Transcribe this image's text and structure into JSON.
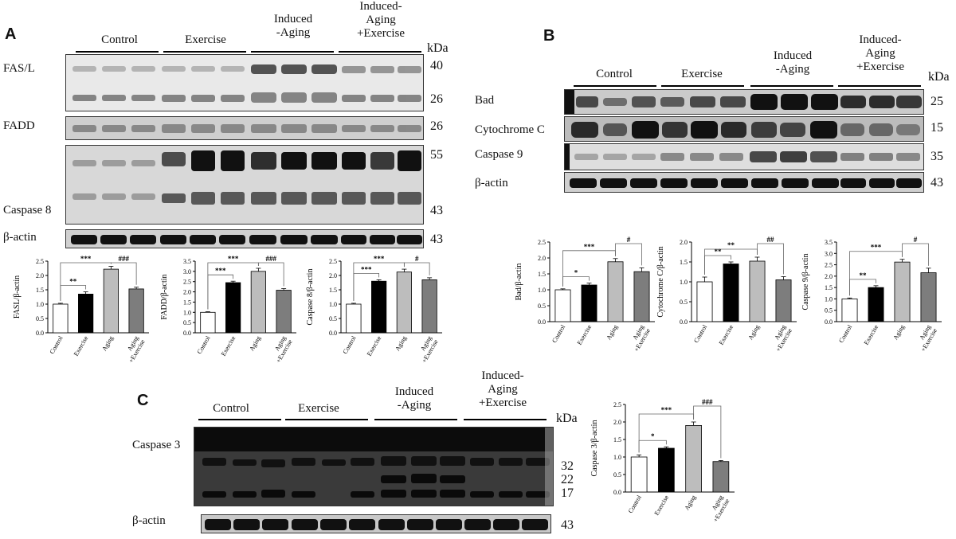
{
  "group_labels": [
    "Control",
    "Exercise",
    "Induced\n-Aging",
    "Induced-\nAging\n+Exercise"
  ],
  "kda_label": "kDa",
  "panel_a": {
    "letter": "A",
    "blots": [
      {
        "label": "FAS/L",
        "markers": [
          "40",
          "26"
        ]
      },
      {
        "label": "FADD",
        "markers": [
          "26"
        ]
      },
      {
        "label": "Caspase 8",
        "markers": [
          "55",
          "43"
        ]
      },
      {
        "label": "β-actin",
        "markers": [
          "43"
        ]
      }
    ]
  },
  "panel_b": {
    "letter": "B",
    "blots": [
      {
        "label": "Bad",
        "markers": [
          "25"
        ]
      },
      {
        "label": "Cytochrome C",
        "markers": [
          "15"
        ]
      },
      {
        "label": "Caspase 9",
        "markers": [
          "35"
        ]
      },
      {
        "label": "β-actin",
        "markers": [
          "43"
        ]
      }
    ]
  },
  "panel_c": {
    "letter": "C",
    "blots": [
      {
        "label": "Caspase 3",
        "markers": [
          "32",
          "22",
          "17"
        ]
      },
      {
        "label": "β-actin",
        "markers": [
          "43"
        ]
      }
    ]
  },
  "chart_data": [
    {
      "type": "bar",
      "panel": "A",
      "ylabel": "FASL/β-actin",
      "ylim": [
        0,
        2.5
      ],
      "yticks": [
        "0.0",
        "0.5",
        "1.0",
        "1.5",
        "2.0",
        "2.5"
      ],
      "categories": [
        "Control",
        "Exercise",
        "Aging",
        "Aging\n+Exercise"
      ],
      "values": [
        1.0,
        1.35,
        2.22,
        1.53
      ],
      "errors": [
        0.03,
        0.08,
        0.1,
        0.06
      ],
      "colors": [
        "#ffffff",
        "#000000",
        "#bdbdbd",
        "#7d7d7d"
      ],
      "significance": [
        {
          "from": 0,
          "to": 1,
          "label": "**"
        },
        {
          "from": 0,
          "to": 2,
          "label": "***"
        },
        {
          "from": 2,
          "to": 3,
          "label": "###"
        }
      ]
    },
    {
      "type": "bar",
      "panel": "A",
      "ylabel": "FADD/β-actin",
      "ylim": [
        0,
        3.5
      ],
      "yticks": [
        "0.0",
        "0.5",
        "1.0",
        "1.5",
        "2.0",
        "2.5",
        "3.0",
        "3.5"
      ],
      "categories": [
        "Control",
        "Exercise",
        "Aging",
        "Aging\n+Exercise"
      ],
      "values": [
        1.0,
        2.45,
        3.0,
        2.08
      ],
      "errors": [
        0.03,
        0.07,
        0.15,
        0.08
      ],
      "colors": [
        "#ffffff",
        "#000000",
        "#bdbdbd",
        "#7d7d7d"
      ],
      "significance": [
        {
          "from": 0,
          "to": 1,
          "label": "***"
        },
        {
          "from": 0,
          "to": 2,
          "label": "***"
        },
        {
          "from": 2,
          "to": 3,
          "label": "###"
        }
      ]
    },
    {
      "type": "bar",
      "panel": "A",
      "ylabel": "Caspase 8/β-actin",
      "ylim": [
        0,
        2.5
      ],
      "yticks": [
        "0.0",
        "0.5",
        "1.0",
        "1.5",
        "2.0",
        "2.5"
      ],
      "categories": [
        "Control",
        "Exercise",
        "Aging",
        "Aging\n+Exercise"
      ],
      "values": [
        1.0,
        1.8,
        2.12,
        1.85
      ],
      "errors": [
        0.03,
        0.05,
        0.1,
        0.07
      ],
      "colors": [
        "#ffffff",
        "#000000",
        "#bdbdbd",
        "#7d7d7d"
      ],
      "significance": [
        {
          "from": 0,
          "to": 1,
          "label": "***"
        },
        {
          "from": 0,
          "to": 2,
          "label": "***"
        },
        {
          "from": 2,
          "to": 3,
          "label": "#"
        }
      ]
    },
    {
      "type": "bar",
      "panel": "B",
      "ylabel": "Bad/β-actin",
      "ylim": [
        0,
        2.5
      ],
      "yticks": [
        "0.0",
        "0.5",
        "1.0",
        "1.5",
        "2.0",
        "2.5"
      ],
      "categories": [
        "Control",
        "Exercise",
        "Aging",
        "Aging\n+Exercise"
      ],
      "values": [
        1.0,
        1.15,
        1.88,
        1.57
      ],
      "errors": [
        0.03,
        0.06,
        0.1,
        0.12
      ],
      "colors": [
        "#ffffff",
        "#000000",
        "#bdbdbd",
        "#7d7d7d"
      ],
      "significance": [
        {
          "from": 0,
          "to": 1,
          "label": "*"
        },
        {
          "from": 0,
          "to": 2,
          "label": "***"
        },
        {
          "from": 2,
          "to": 3,
          "label": "#"
        }
      ]
    },
    {
      "type": "bar",
      "panel": "B",
      "ylabel": "Cytochrome C/β-actin",
      "ylim": [
        0,
        2.0
      ],
      "yticks": [
        "0.0",
        "0.5",
        "1.0",
        "1.5",
        "2.0"
      ],
      "categories": [
        "Control",
        "Exercise",
        "Aging",
        "Aging\n+Exercise"
      ],
      "values": [
        1.0,
        1.45,
        1.52,
        1.05
      ],
      "errors": [
        0.12,
        0.05,
        0.1,
        0.08
      ],
      "colors": [
        "#ffffff",
        "#000000",
        "#bdbdbd",
        "#7d7d7d"
      ],
      "significance": [
        {
          "from": 0,
          "to": 1,
          "label": "**"
        },
        {
          "from": 0,
          "to": 2,
          "label": "**"
        },
        {
          "from": 2,
          "to": 3,
          "label": "##"
        }
      ]
    },
    {
      "type": "bar",
      "panel": "B",
      "ylabel": "Caspase 9/β-actin",
      "ylim": [
        0,
        3.5
      ],
      "yticks": [
        "0.0",
        "0.5",
        "1.0",
        "1.5",
        "2.0",
        "2.5",
        "3.0",
        "3.5"
      ],
      "categories": [
        "Control",
        "Exercise",
        "Aging",
        "Aging\n+Exercise"
      ],
      "values": [
        1.0,
        1.5,
        2.62,
        2.15
      ],
      "errors": [
        0.04,
        0.08,
        0.12,
        0.2
      ],
      "colors": [
        "#ffffff",
        "#000000",
        "#bdbdbd",
        "#7d7d7d"
      ],
      "significance": [
        {
          "from": 0,
          "to": 1,
          "label": "**"
        },
        {
          "from": 0,
          "to": 2,
          "label": "***"
        },
        {
          "from": 2,
          "to": 3,
          "label": "#"
        }
      ]
    },
    {
      "type": "bar",
      "panel": "C",
      "ylabel": "Caspase 3/β-actin",
      "ylim": [
        0,
        2.5
      ],
      "yticks": [
        "0.0",
        "0.5",
        "1.0",
        "1.5",
        "2.0",
        "2.5"
      ],
      "categories": [
        "Control",
        "Exercise",
        "Aging",
        "Aging\n+Exercise"
      ],
      "values": [
        1.0,
        1.25,
        1.9,
        0.87
      ],
      "errors": [
        0.06,
        0.04,
        0.1,
        0.03
      ],
      "colors": [
        "#ffffff",
        "#000000",
        "#bdbdbd",
        "#7d7d7d"
      ],
      "significance": [
        {
          "from": 0,
          "to": 1,
          "label": "*"
        },
        {
          "from": 0,
          "to": 2,
          "label": "***"
        },
        {
          "from": 2,
          "to": 3,
          "label": "###"
        }
      ]
    }
  ]
}
